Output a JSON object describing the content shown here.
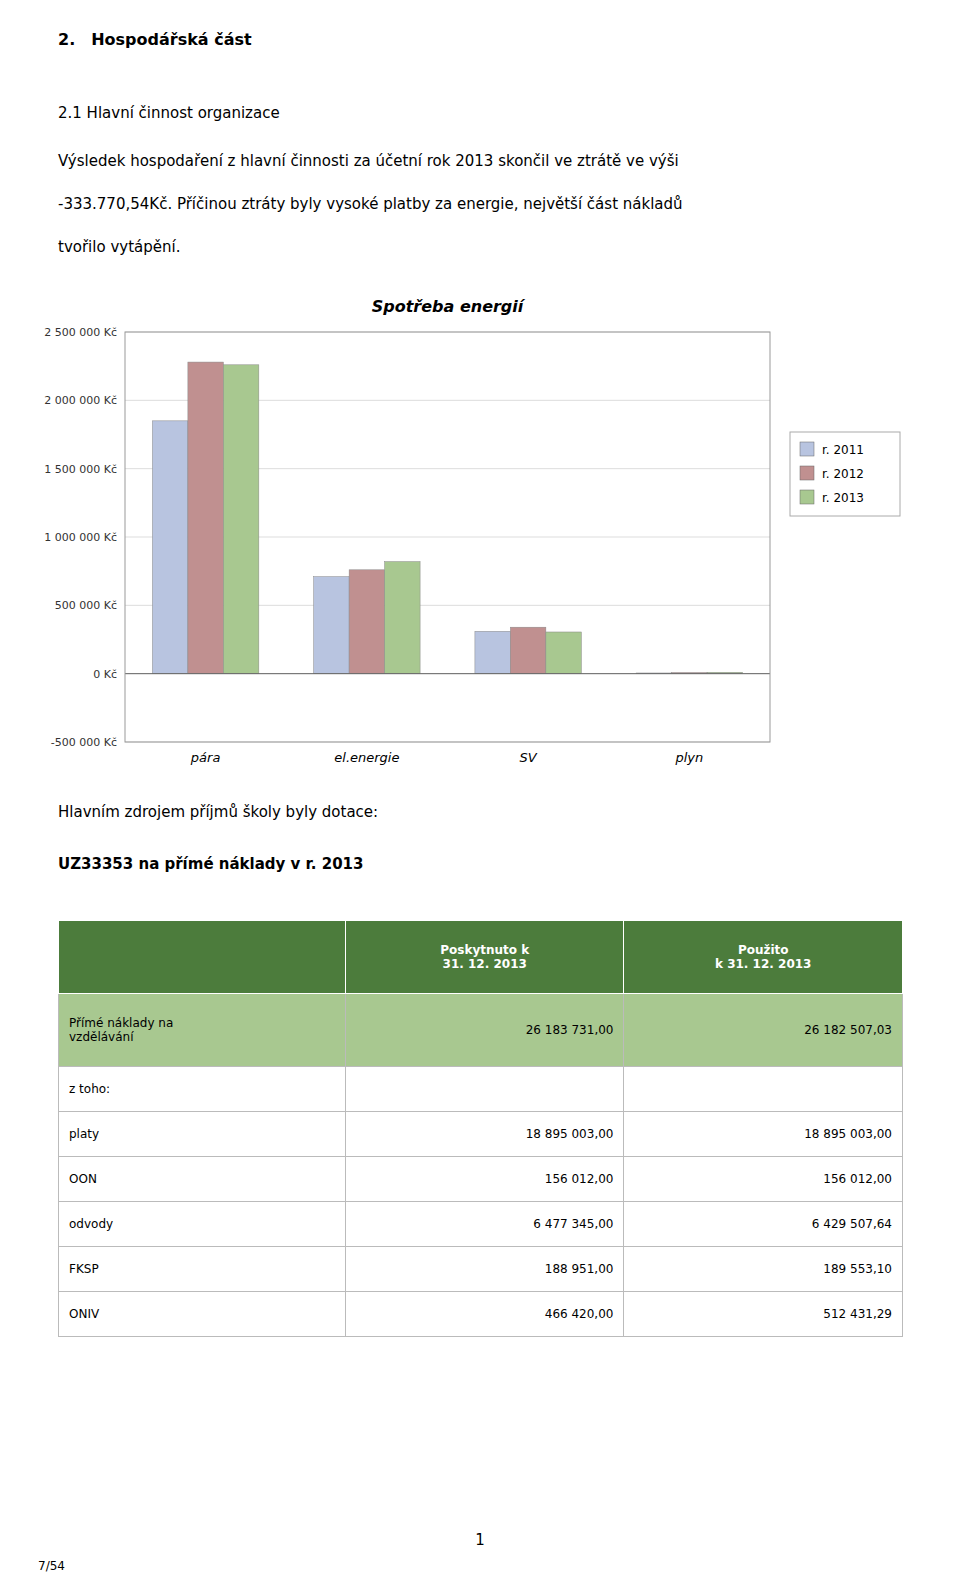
{
  "title_section": "2. Hospodářská část",
  "subtitle": "2.1 Hlavní činnost organizace",
  "paragraph": [
    "Výsledek hospodaření z hlavní činnosti za účetní rok 2013 skončil ve ztrátě ve výši",
    "-333.770,54Kč. Příčinou ztráty byly vysoké platby za energie, největší část nákladů",
    "tvořilo vytápění."
  ],
  "chart_data": {
    "type": "bar",
    "title": "Spotřeba energií",
    "categories": [
      "pára",
      "el.energie",
      "SV",
      "plyn"
    ],
    "series": [
      {
        "name": "r. 2011",
        "color": "#b8c4e0",
        "values": [
          1850000,
          710000,
          310000,
          5000
        ]
      },
      {
        "name": "r. 2012",
        "color": "#c09090",
        "values": [
          2280000,
          760000,
          340000,
          8000
        ]
      },
      {
        "name": "r. 2013",
        "color": "#a8c890",
        "values": [
          2260000,
          820000,
          305000,
          10000
        ]
      }
    ],
    "ylim": [
      -500000,
      2500000
    ],
    "yticks": [
      {
        "value": -500000,
        "label": "-500 000 Kč"
      },
      {
        "value": 0,
        "label": "0 Kč"
      },
      {
        "value": 500000,
        "label": "500 000 Kč"
      },
      {
        "value": 1000000,
        "label": "1 000 000 Kč"
      },
      {
        "value": 1500000,
        "label": "1 500 000 Kč"
      },
      {
        "value": 2000000,
        "label": "2 000 000 Kč"
      },
      {
        "value": 2500000,
        "label": "2 500 000 Kč"
      }
    ],
    "grid": true,
    "legend": "right"
  },
  "text_below_chart": "Hlavním zdrojem příjmů školy byly dotace:",
  "table": {
    "title": "UZ33353 na přímé náklady v r. 2013",
    "columns": [
      null,
      "Poskytnuto k\n31. 12. 2013",
      "Použito\nk 31. 12. 2013"
    ],
    "rows": [
      [
        "Přímé náklady na\nvzdělávání",
        "26 183 731,00",
        "26 182 507,03"
      ],
      [
        "z toho:",
        null,
        null
      ],
      [
        "platy",
        "18 895 003,00",
        "18 895 003,00"
      ],
      [
        "OON",
        "156 012,00",
        "156 012,00"
      ],
      [
        "odvody",
        "6 477 345,00",
        "6 429 507,64"
      ],
      [
        "FKSP",
        "188 951,00",
        "189 553,10"
      ],
      [
        "ONIV",
        "466 420,00",
        "512 431,29"
      ]
    ],
    "header_color": "#4c7c3c",
    "header_text_color": "#ffffff",
    "highlight_color": "#a8c890"
  },
  "page_number": "1",
  "page_footer": "7/54"
}
